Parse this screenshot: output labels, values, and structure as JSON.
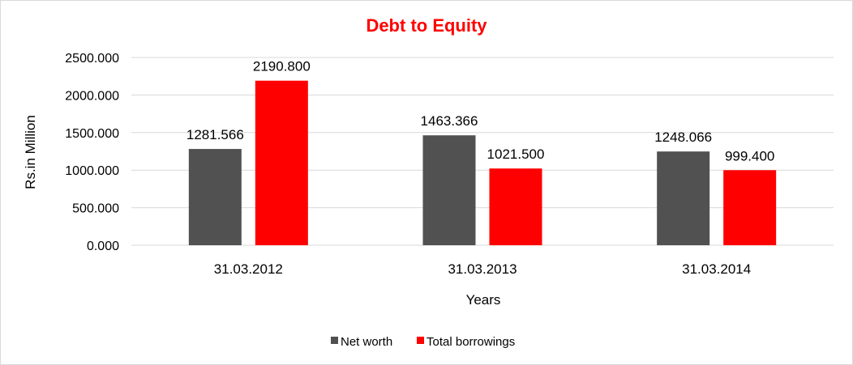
{
  "chart_data": {
    "type": "bar",
    "title": "Debt to Equity",
    "title_color": "#ff0000",
    "xlabel": "Years",
    "ylabel": "Rs.in Million",
    "categories": [
      "31.03.2012",
      "31.03.2013",
      "31.03.2014"
    ],
    "series": [
      {
        "name": "Net worth",
        "color": "#515151",
        "values": [
          1281.566,
          1463.366,
          1248.066
        ]
      },
      {
        "name": "Total borrowings",
        "color": "#ff0000",
        "values": [
          2190.8,
          1021.5,
          999.4
        ]
      }
    ],
    "ylim": [
      0,
      2500
    ],
    "yticks": [
      "0.000",
      "500.000",
      "1000.000",
      "1500.000",
      "2000.000",
      "2500.000"
    ],
    "data_labels": [
      [
        "1281.566",
        "1463.366",
        "1248.066"
      ],
      [
        "2190.800",
        "1021.500",
        "999.400"
      ]
    ],
    "grid": true,
    "legend_position": "bottom"
  }
}
